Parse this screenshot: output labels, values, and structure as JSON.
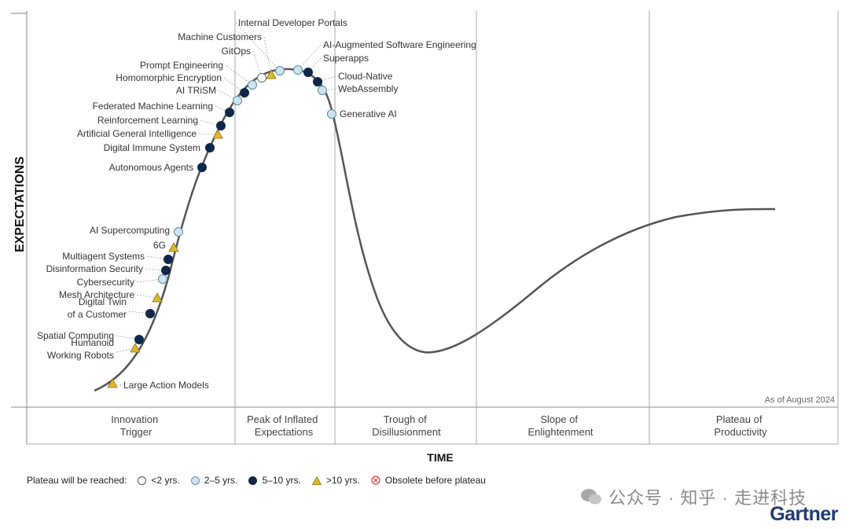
{
  "chart_data": {
    "type": "hype-cycle",
    "title": "",
    "ylabel": "EXPECTATIONS",
    "xlabel": "TIME",
    "note": "As of August 2024",
    "phases": [
      {
        "line1": "Innovation",
        "line2": "Trigger"
      },
      {
        "line1": "Peak of Inflated",
        "line2": "Expectations"
      },
      {
        "line1": "Trough of",
        "line2": "Disillusionment"
      },
      {
        "line1": "Slope of",
        "line2": "Enlightenment"
      },
      {
        "line1": "Plateau of",
        "line2": "Productivity"
      }
    ],
    "legend": {
      "title": "Plateau will be reached:",
      "items": [
        {
          "key": "lt2",
          "label": "<2 yrs."
        },
        {
          "key": "y2to5",
          "label": "2–5 yrs."
        },
        {
          "key": "y5to10",
          "label": "5–10 yrs."
        },
        {
          "key": "gt10",
          "label": ">10 yrs."
        },
        {
          "key": "obsolete",
          "label": "Obsolete before plateau"
        }
      ]
    },
    "technologies": [
      {
        "name": "Large Action Models",
        "plateau": "gt10"
      },
      {
        "name": "Humanoid Working Robots",
        "line1": "Humanoid",
        "line2": "Working Robots",
        "plateau": "gt10"
      },
      {
        "name": "Spatial Computing",
        "plateau": "y5to10"
      },
      {
        "name": "Digital Twin of a Customer",
        "line1": "Digital Twin",
        "line2": "of a Customer",
        "plateau": "y5to10"
      },
      {
        "name": "Mesh Architecture",
        "plateau": "gt10"
      },
      {
        "name": "Cybersecurity",
        "plateau": "y2to5"
      },
      {
        "name": "Disinformation Security",
        "plateau": "y5to10"
      },
      {
        "name": "Multiagent Systems",
        "plateau": "y5to10"
      },
      {
        "name": "6G",
        "plateau": "gt10"
      },
      {
        "name": "AI Supercomputing",
        "plateau": "y2to5"
      },
      {
        "name": "Autonomous Agents",
        "plateau": "y5to10"
      },
      {
        "name": "Digital Immune System",
        "plateau": "y5to10"
      },
      {
        "name": "Artificial General Intelligence",
        "plateau": "gt10"
      },
      {
        "name": "Reinforcement Learning",
        "plateau": "y5to10"
      },
      {
        "name": "Federated Machine Learning",
        "plateau": "y5to10"
      },
      {
        "name": "AI TRiSM",
        "plateau": "y2to5"
      },
      {
        "name": "Homomorphic Encryption",
        "plateau": "y5to10"
      },
      {
        "name": "Prompt Engineering",
        "plateau": "y2to5"
      },
      {
        "name": "GitOps",
        "plateau": "lt2"
      },
      {
        "name": "Machine Customers",
        "plateau": "gt10"
      },
      {
        "name": "Internal Developer Portals",
        "plateau": "y2to5"
      },
      {
        "name": "AI-Augmented Software Engineering",
        "plateau": "y2to5"
      },
      {
        "name": "Superapps",
        "plateau": "y5to10"
      },
      {
        "name": "Cloud-Native",
        "plateau": "y5to10"
      },
      {
        "name": "WebAssembly",
        "plateau": "y2to5"
      },
      {
        "name": "Generative AI",
        "plateau": "y2to5"
      }
    ]
  },
  "colors": {
    "lt2": "#ffffff",
    "y2to5": "#cfe4f0",
    "y5to10": "#0f2748",
    "gt10": "#e0b82a",
    "obsolete": "#d93a3a",
    "curve": "#555555",
    "grid": "#aaaaaa",
    "brand": "#1f3c6e"
  },
  "watermark": "公众号 · 知乎 · 走进科技",
  "brand": "Gartner"
}
